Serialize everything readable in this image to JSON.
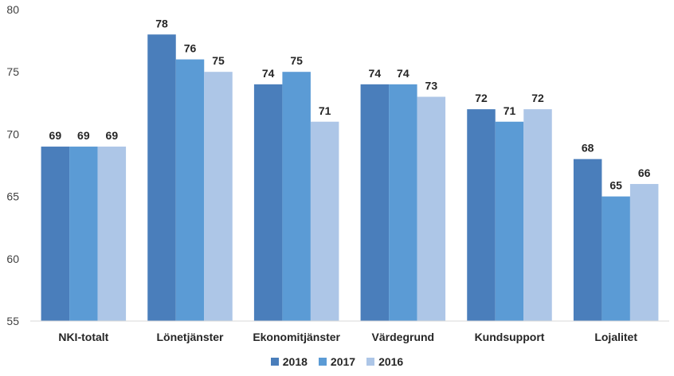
{
  "chart_data": {
    "type": "bar",
    "categories": [
      "NKI-totalt",
      "Lönetjänster",
      "Ekonomitjänster",
      "Värdegrund",
      "Kundsupport",
      "Lojalitet"
    ],
    "series": [
      {
        "name": "2018",
        "color": "#4a7ebb",
        "values": [
          69,
          78,
          74,
          74,
          72,
          68
        ]
      },
      {
        "name": "2017",
        "color": "#5b9bd5",
        "values": [
          69,
          76,
          75,
          74,
          71,
          65
        ]
      },
      {
        "name": "2016",
        "color": "#adc6e7",
        "values": [
          69,
          75,
          71,
          73,
          72,
          66
        ]
      }
    ],
    "yticks": [
      "55",
      "60",
      "65",
      "70",
      "75",
      "80"
    ],
    "ylim": [
      55,
      80
    ],
    "grid": false,
    "legend_position": "bottom"
  }
}
